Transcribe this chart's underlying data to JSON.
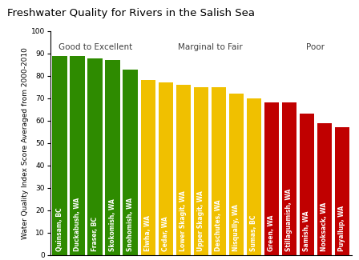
{
  "title": "Freshwater Quality for Rivers in the Salish Sea",
  "ylabel": "Water Quality Index Score Averaged from 2000-2010",
  "ylim": [
    0,
    100
  ],
  "rivers": [
    "Quinsam, BC",
    "Duckabush, WA",
    "Fraser, BC",
    "Skokomish, WA",
    "Snohomish, WA",
    "Elwha, WA",
    "Cedar, WA",
    "Lower Skagit, WA",
    "Upper Skagit, WA",
    "Deschutes, WA",
    "Nisqually, WA",
    "Sumas, BC",
    "Green, WA",
    "Stillaguamish, WA",
    "Samish, WA",
    "Nooksack, WA",
    "Puyallup, WA"
  ],
  "values": [
    89,
    89,
    88,
    87,
    83,
    78,
    77,
    76,
    75,
    75,
    72,
    70,
    68,
    68,
    63,
    59,
    57
  ],
  "colors": [
    "#2e8b00",
    "#2e8b00",
    "#2e8b00",
    "#2e8b00",
    "#2e8b00",
    "#f0c000",
    "#f0c000",
    "#f0c000",
    "#f0c000",
    "#f0c000",
    "#f0c000",
    "#f0c000",
    "#c00000",
    "#c00000",
    "#c00000",
    "#c00000",
    "#c00000"
  ],
  "category_labels": [
    {
      "text": "Good to Excellent",
      "x": 2.0,
      "color": "#404040"
    },
    {
      "text": "Marginal to Fair",
      "x": 8.5,
      "color": "#404040"
    },
    {
      "text": "Poor",
      "x": 14.5,
      "color": "#404040"
    }
  ],
  "bar_text_color": "#ffffff",
  "title_fontsize": 9.5,
  "ylabel_fontsize": 6.5,
  "tick_fontsize": 6.5,
  "category_fontsize": 7.5,
  "label_fontsize": 5.5
}
